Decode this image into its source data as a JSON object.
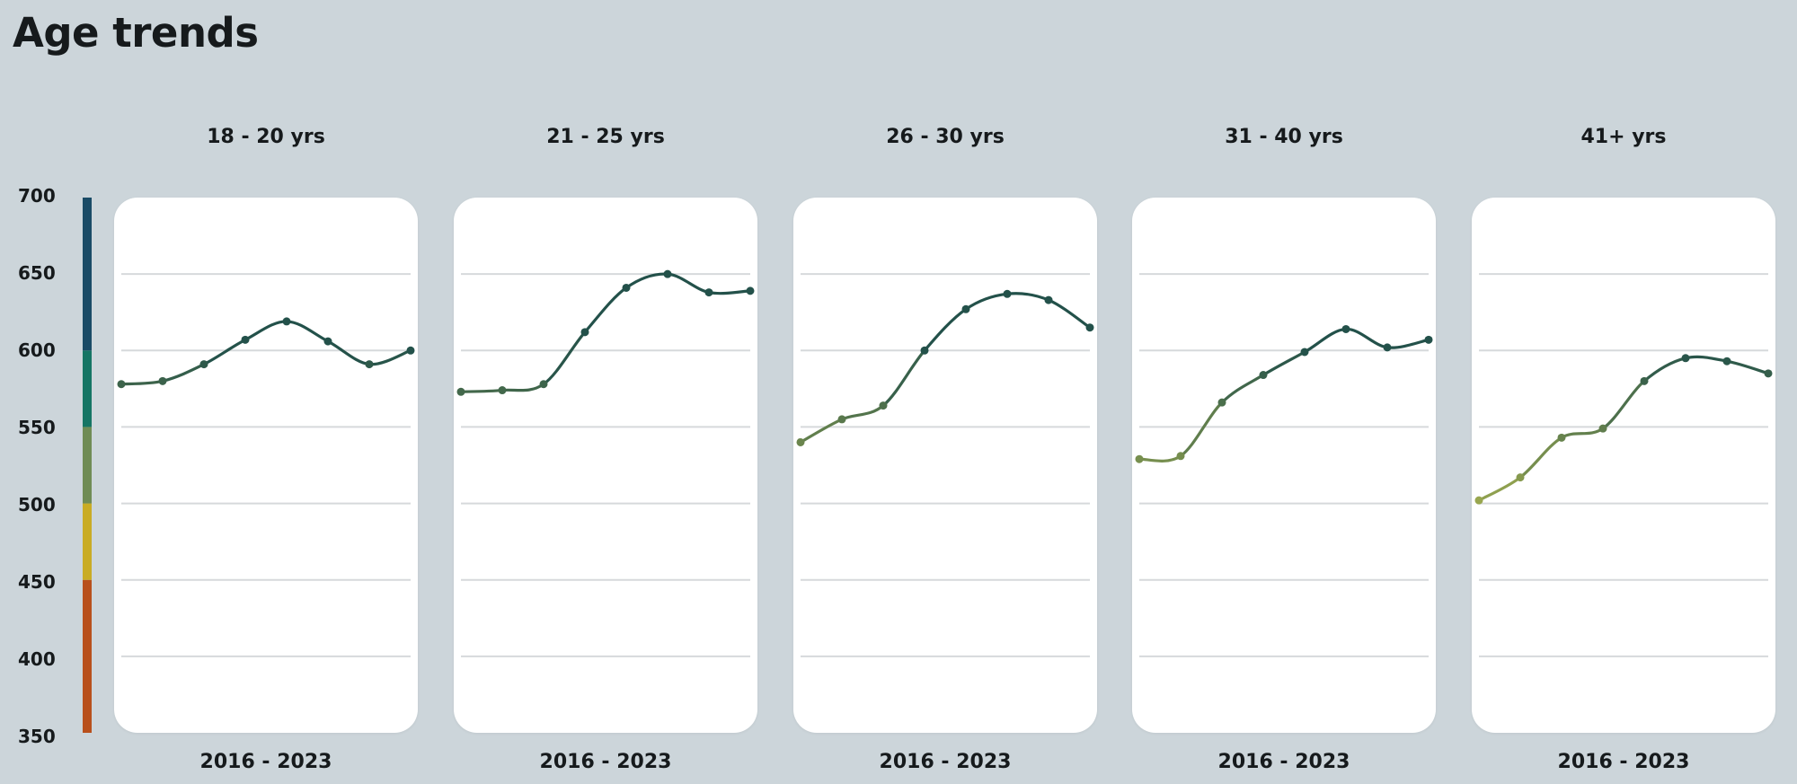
{
  "header": {
    "title": "Age trends"
  },
  "colors": {
    "line_dark": "#23514a",
    "line_light": "#9aa84f",
    "grid": "#d6d9db",
    "score_bands": [
      {
        "from": 350,
        "to": 450,
        "color": "#b8501c"
      },
      {
        "from": 450,
        "to": 500,
        "color": "#c9ac24"
      },
      {
        "from": 500,
        "to": 550,
        "color": "#6f8c55"
      },
      {
        "from": 550,
        "to": 600,
        "color": "#157564"
      },
      {
        "from": 600,
        "to": 700,
        "color": "#1a4b66"
      }
    ]
  },
  "chart_data": {
    "type": "line",
    "title": "Age trends",
    "ylim": [
      350,
      700
    ],
    "yticks": [
      "700",
      "650",
      "600",
      "550",
      "500",
      "450",
      "400",
      "350"
    ],
    "grid_values": [
      650,
      600,
      550,
      500,
      450,
      400
    ],
    "x": [
      2016,
      2017,
      2018,
      2019,
      2020,
      2021,
      2022,
      2023
    ],
    "panels": [
      {
        "title": "18 - 20 yrs",
        "x_range_label": "2016 - 2023",
        "values": [
          578,
          580,
          591,
          607,
          619,
          606,
          591,
          600
        ]
      },
      {
        "title": "21 - 25 yrs",
        "x_range_label": "2016 - 2023",
        "values": [
          573,
          574,
          578,
          612,
          641,
          650,
          638,
          639
        ]
      },
      {
        "title": "26 - 30 yrs",
        "x_range_label": "2016 - 2023",
        "values": [
          540,
          555,
          564,
          600,
          627,
          637,
          633,
          615
        ]
      },
      {
        "title": "31 - 40 yrs",
        "x_range_label": "2016 - 2023",
        "values": [
          529,
          531,
          566,
          584,
          599,
          614,
          602,
          607
        ]
      },
      {
        "title": "41+ yrs",
        "x_range_label": "2016 - 2023",
        "values": [
          502,
          517,
          543,
          549,
          580,
          595,
          593,
          585
        ]
      }
    ]
  }
}
